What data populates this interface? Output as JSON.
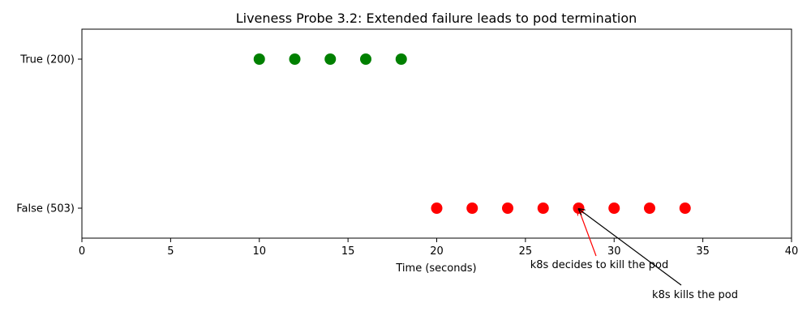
{
  "chart_data": {
    "type": "scatter",
    "title": "Liveness Probe 3.2: Extended failure leads to pod termination",
    "xlabel": "Time (seconds)",
    "ylabel": "",
    "xlim": [
      0,
      40
    ],
    "xticks": [
      0,
      5,
      10,
      15,
      20,
      25,
      30,
      35,
      40
    ],
    "y_categories": [
      "False (503)",
      "True (200)"
    ],
    "grid": false,
    "series": [
      {
        "color": "#008000",
        "category": "True (200)",
        "x": [
          10,
          12,
          14,
          16,
          18
        ]
      },
      {
        "color": "#ff0000",
        "category": "False (503)",
        "x": [
          20,
          22,
          24,
          26,
          28,
          30,
          32,
          34
        ]
      }
    ],
    "annotations": [
      {
        "text": "k8s decides to kill the pod",
        "x": 28,
        "category": "False (503)",
        "arrow_color": "#ff0000"
      },
      {
        "text": "k8s kills the pod",
        "x": 28,
        "category": "False (503)",
        "arrow_color": "#000000"
      }
    ]
  }
}
